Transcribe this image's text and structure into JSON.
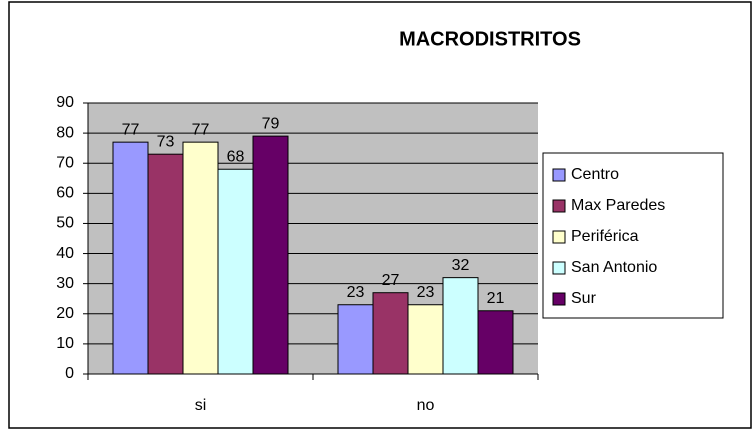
{
  "chart_data": {
    "type": "bar",
    "title": "MACRODISTRITOS",
    "categories": [
      "si",
      "no"
    ],
    "series": [
      {
        "name": "Centro",
        "color": "#9999ff",
        "values": [
          77,
          23
        ]
      },
      {
        "name": "Max Paredes",
        "color": "#993366",
        "values": [
          73,
          27
        ]
      },
      {
        "name": "Periférica",
        "color": "#ffffcc",
        "values": [
          77,
          23
        ]
      },
      {
        "name": "San Antonio",
        "color": "#ccffff",
        "values": [
          68,
          32
        ]
      },
      {
        "name": "Sur",
        "color": "#660066",
        "values": [
          79,
          21
        ]
      }
    ],
    "ylim": [
      0,
      90
    ],
    "yticks": [
      0,
      10,
      20,
      30,
      40,
      50,
      60,
      70,
      80,
      90
    ],
    "grid": true,
    "legend": "right",
    "plot_background": "#c0c0c0"
  }
}
